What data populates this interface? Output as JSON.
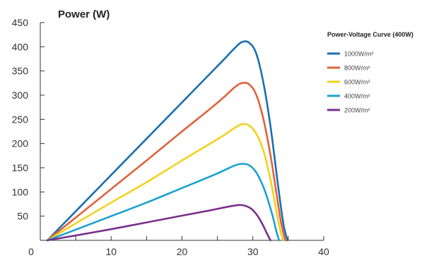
{
  "chart_data": {
    "type": "line",
    "title": "Power (W)",
    "xlabel": "",
    "ylabel": "",
    "xlim": [
      0,
      40
    ],
    "ylim": [
      0,
      450
    ],
    "x_ticks": [
      0,
      10,
      20,
      30,
      40
    ],
    "y_ticks": [
      50,
      100,
      150,
      200,
      250,
      300,
      350,
      400,
      450
    ],
    "grid": false,
    "legend": {
      "title": "Power-Voltage Curve (400W)",
      "placement": "right"
    },
    "series": [
      {
        "name": "1000W/m²",
        "color": "#1a6fb0",
        "x": [
          1,
          5,
          10,
          15,
          20,
          24,
          26,
          27.5,
          28.5,
          29.5,
          30.5,
          31.5,
          32.5,
          33.5,
          34.3,
          34.9
        ],
        "y": [
          0,
          60,
          135,
          210,
          285,
          345,
          375,
          398,
          410,
          408,
          385,
          325,
          235,
          120,
          35,
          0
        ]
      },
      {
        "name": "800W/m²",
        "color": "#e0623a",
        "x": [
          1,
          5,
          10,
          15,
          20,
          24,
          26,
          27.5,
          28.5,
          29.5,
          30.5,
          31.5,
          32.5,
          33.3,
          34.0,
          34.6
        ],
        "y": [
          0,
          47,
          106,
          165,
          225,
          272,
          297,
          317,
          325,
          322,
          300,
          250,
          175,
          100,
          35,
          0
        ]
      },
      {
        "name": "600W/m²",
        "color": "#f2d21f",
        "x": [
          1,
          5,
          10,
          15,
          20,
          24,
          26,
          27.5,
          28.5,
          29.5,
          30.5,
          31.5,
          32.5,
          33.2,
          33.8,
          34.3
        ],
        "y": [
          0,
          35,
          78,
          120,
          165,
          200,
          218,
          233,
          240,
          237,
          220,
          185,
          125,
          70,
          25,
          0
        ]
      },
      {
        "name": "400W/m²",
        "color": "#1ba1d0",
        "x": [
          1,
          5,
          10,
          15,
          20,
          24,
          26,
          27.5,
          28.5,
          29.5,
          30.5,
          31.5,
          32.2,
          32.8,
          33.3,
          33.7
        ],
        "y": [
          0,
          22,
          50,
          78,
          108,
          132,
          145,
          155,
          158,
          155,
          140,
          110,
          80,
          50,
          20,
          0
        ]
      },
      {
        "name": "200W/m²",
        "color": "#7a2f8c",
        "x": [
          1,
          5,
          10,
          15,
          20,
          24,
          26,
          27.5,
          28.3,
          29.0,
          29.8,
          30.6,
          31.3,
          31.8,
          32.2,
          32.5
        ],
        "y": [
          0,
          10,
          23,
          37,
          51,
          62,
          68,
          72,
          73,
          71,
          65,
          52,
          35,
          20,
          8,
          0
        ]
      }
    ]
  }
}
